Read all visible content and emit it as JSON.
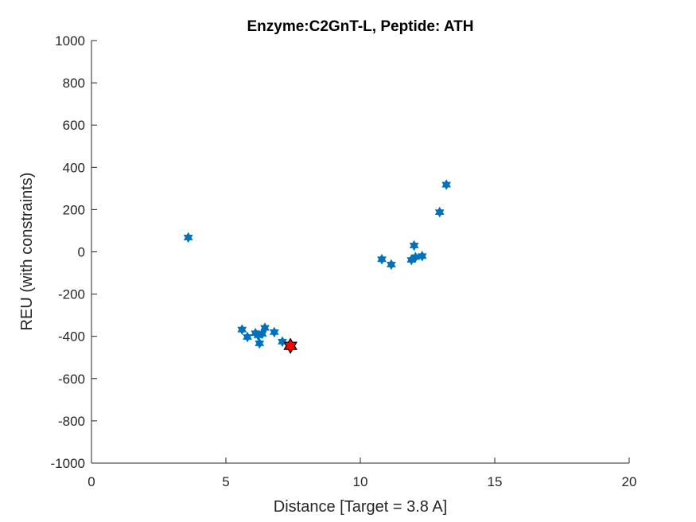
{
  "chart_data": {
    "type": "scatter",
    "title": "Enzyme:C2GnT-L, Peptide: ATH",
    "xlabel": "Distance [Target = 3.8 A]",
    "ylabel": "REU (with constraints)",
    "xlim": [
      0,
      20
    ],
    "ylim": [
      -1000,
      1000
    ],
    "xticks": [
      0,
      5,
      10,
      15,
      20
    ],
    "yticks": [
      -1000,
      -800,
      -600,
      -400,
      -200,
      0,
      200,
      400,
      600,
      800,
      1000
    ],
    "grid": false,
    "series": [
      {
        "marker": "hexagram",
        "color": "#0072BD",
        "points": [
          [
            3.6,
            68
          ],
          [
            5.6,
            -368
          ],
          [
            5.8,
            -403
          ],
          [
            6.1,
            -385
          ],
          [
            6.2,
            -395
          ],
          [
            6.25,
            -433
          ],
          [
            6.35,
            -388
          ],
          [
            6.45,
            -360
          ],
          [
            6.8,
            -380
          ],
          [
            7.1,
            -425
          ],
          [
            10.8,
            -35
          ],
          [
            11.15,
            -60
          ],
          [
            11.9,
            -38
          ],
          [
            12.0,
            30
          ],
          [
            12.05,
            -25
          ],
          [
            12.3,
            -20
          ],
          [
            12.95,
            188
          ],
          [
            13.2,
            318
          ]
        ]
      },
      {
        "marker": "hexagram",
        "color": "#FF0000",
        "edge_color": "#000000",
        "points": [
          [
            7.4,
            -445
          ]
        ]
      }
    ]
  }
}
